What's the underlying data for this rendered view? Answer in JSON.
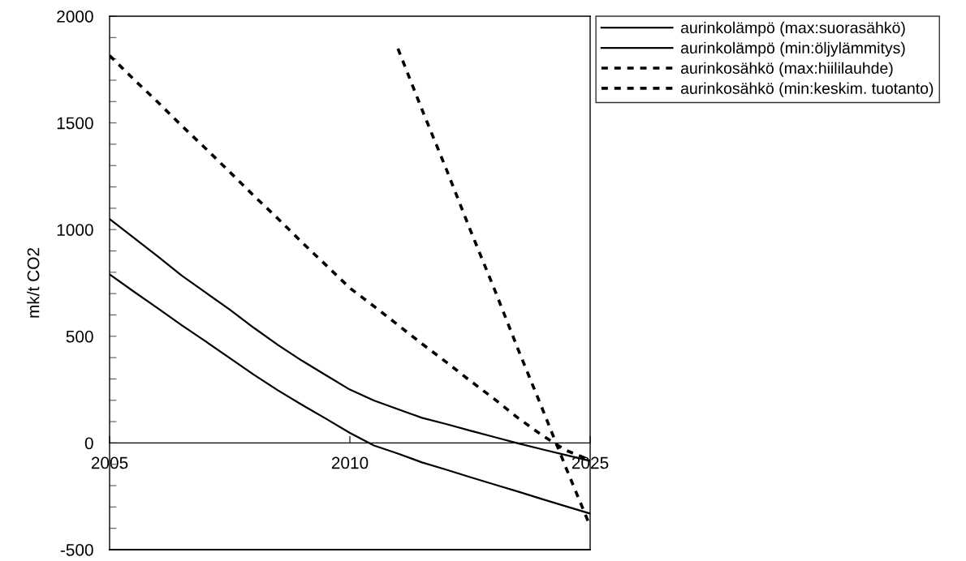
{
  "chart_data": {
    "type": "line",
    "ylabel": "mk/t CO2",
    "categories": [
      "2005",
      null,
      null,
      null,
      null,
      null,
      null,
      null,
      null,
      null,
      "2010",
      null,
      null,
      null,
      null,
      null,
      null,
      null,
      null,
      null,
      "2025"
    ],
    "series": [
      {
        "name": "aurinkolämpö (max:suorasähkö)",
        "color": "#000000",
        "line_style": "solid",
        "values": [
          1050,
          962,
          875,
          785,
          705,
          625,
          540,
          460,
          386,
          318,
          250,
          199,
          158,
          118,
          89,
          58,
          28,
          -2,
          -30,
          -57,
          -84
        ]
      },
      {
        "name": "aurinkolämpö (min:öljylämmitys)",
        "color": "#000000",
        "line_style": "solid",
        "values": [
          790,
          710,
          632,
          552,
          476,
          398,
          320,
          247,
          179,
          114,
          47,
          -12,
          -50,
          -91,
          -125,
          -160,
          -194,
          -228,
          -263,
          -297,
          -331
        ]
      },
      {
        "name": "aurinkosähkö (max:hiililauhde)",
        "color": "#000000",
        "line_style": "dashed",
        "values": [
          null,
          null,
          null,
          null,
          null,
          null,
          null,
          null,
          null,
          null,
          null,
          null,
          1848,
          1563,
          1287,
          1001,
          725,
          439,
          163,
          -118,
          -390
        ]
      },
      {
        "name": "aurinkosähkö (min:keskim. tuotanto)",
        "color": "#000000",
        "line_style": "dashed",
        "values": [
          1816,
          1705,
          1598,
          1487,
          1380,
          1270,
          1159,
          1052,
          941,
          834,
          726,
          641,
          553,
          465,
          380,
          292,
          207,
          117,
          36,
          -35,
          -80
        ]
      }
    ],
    "ylim": [
      -500,
      2000
    ],
    "yticks": [
      -500,
      {
        "value": -400,
        "label": null
      },
      {
        "value": -300,
        "label": null
      },
      {
        "value": -200,
        "label": null
      },
      {
        "value": -100,
        "label": null
      },
      0,
      {
        "value": 100,
        "label": null
      },
      {
        "value": 200,
        "label": null
      },
      {
        "value": 300,
        "label": null
      },
      {
        "value": 400,
        "label": null
      },
      500,
      {
        "value": 600,
        "label": null
      },
      {
        "value": 700,
        "label": null
      },
      {
        "value": 800,
        "label": null
      },
      {
        "value": 900,
        "label": null
      },
      1000,
      {
        "value": 1100,
        "label": null
      },
      {
        "value": 1200,
        "label": null
      },
      {
        "value": 1300,
        "label": null
      },
      {
        "value": 1400,
        "label": null
      },
      1500,
      {
        "value": 1600,
        "label": null
      },
      {
        "value": 1700,
        "label": null
      },
      {
        "value": 1800,
        "label": null
      },
      {
        "value": 1900,
        "label": null
      },
      2000
    ],
    "legend": "right",
    "grid": false,
    "marker": "none"
  }
}
